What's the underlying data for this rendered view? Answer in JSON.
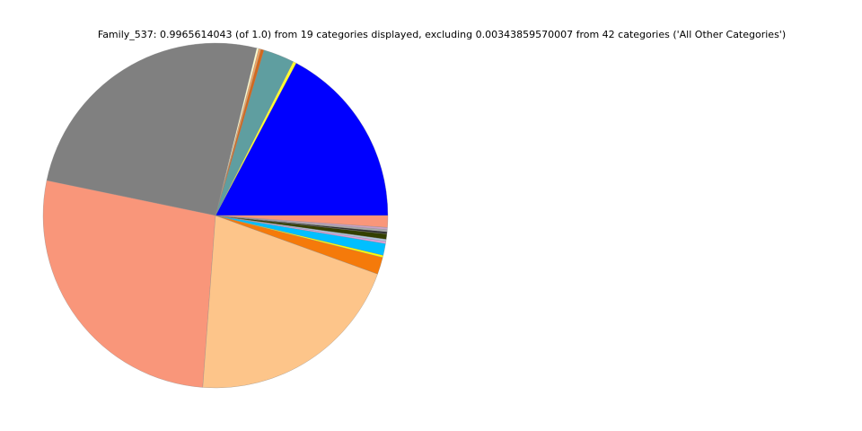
{
  "chart_data": {
    "type": "pie",
    "title": "Family_537: 0.9965614043 (of 1.0) from 19 categories displayed, excluding 0.00343859570007 from 42 categories ('All Other Categories')",
    "values": [
      0.172,
      0.003,
      0.029,
      0.003,
      0.002,
      0.002,
      0.255,
      0.27,
      0.206,
      0.016,
      0.002,
      0.011,
      0.002,
      0.002,
      0.005,
      0.002,
      0.002,
      0.002,
      0.011
    ],
    "colors": [
      "#0000ff",
      "#ffff33",
      "#5f9ea0",
      "#d2691e",
      "#f4a460",
      "#fffacd",
      "#808080",
      "#f9967a",
      "#fdc58a",
      "#f57a0a",
      "#ffff00",
      "#00bfff",
      "#dda0dd",
      "#b0c4de",
      "#333f00",
      "#2f2f2f",
      "#a9a9a9",
      "#c8a2c8",
      "#f9967a"
    ]
  }
}
